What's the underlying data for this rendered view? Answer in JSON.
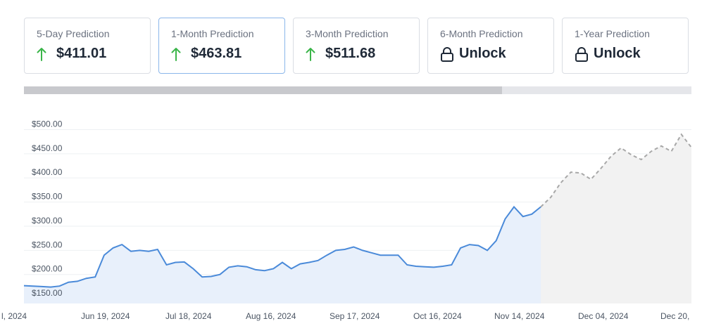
{
  "cards": [
    {
      "label": "5-Day Prediction",
      "value": "$411.01",
      "icon": "arrow-up-icon",
      "active": false
    },
    {
      "label": "1-Month Prediction",
      "value": "$463.81",
      "icon": "arrow-up-icon",
      "active": true
    },
    {
      "label": "3-Month Prediction",
      "value": "$511.68",
      "icon": "arrow-up-icon",
      "active": false
    },
    {
      "label": "6-Month Prediction",
      "value": "Unlock",
      "icon": "lock-icon",
      "active": false
    },
    {
      "label": "1-Year Prediction",
      "value": "Unlock",
      "icon": "lock-icon",
      "active": false
    }
  ],
  "colors": {
    "up_arrow": "#3bb54a",
    "line": "#4a8ad9",
    "area": "#e8f0fb",
    "forecast_line": "#a8a8a8",
    "forecast_area": "#f2f2f2"
  },
  "scroll_position": 0.716,
  "chart_data": {
    "type": "line",
    "title": "",
    "xlabel": "",
    "ylabel": "",
    "ylim": [
      140,
      505
    ],
    "yticks": [
      "$150.00",
      "$200.00",
      "$250.00",
      "$300.00",
      "$350.00",
      "$400.00",
      "$450.00",
      "$500.00"
    ],
    "ytick_values": [
      150,
      200,
      250,
      300,
      350,
      400,
      450,
      500
    ],
    "xticks": [
      "l, 2024",
      "Jun 19, 2024",
      "Jul 18, 2024",
      "Aug 16, 2024",
      "Sep 17, 2024",
      "Oct 16, 2024",
      "Nov 14, 2024",
      "Dec 04, 2024",
      "Dec 20,"
    ],
    "grid": true,
    "series": [
      {
        "kind": "historical",
        "x": [
          "May 21",
          "May 25",
          "May 29",
          "Jun 02",
          "Jun 06",
          "Jun 10",
          "Jun 14",
          "Jun 18",
          "Jun 22",
          "Jun 26",
          "Jun 30",
          "Jul 02",
          "Jul 05",
          "Jul 08",
          "Jul 10",
          "Jul 13",
          "Jul 16",
          "Jul 18",
          "Jul 21",
          "Jul 24",
          "Jul 27",
          "Jul 30",
          "Aug 02",
          "Aug 05",
          "Aug 08",
          "Aug 11",
          "Aug 14",
          "Aug 17",
          "Aug 20",
          "Aug 23",
          "Aug 26",
          "Aug 29",
          "Sep 01",
          "Sep 04",
          "Sep 07",
          "Sep 10",
          "Sep 13",
          "Sep 16",
          "Sep 19",
          "Sep 22",
          "Sep 25",
          "Sep 28",
          "Oct 01",
          "Oct 04",
          "Oct 07",
          "Oct 10",
          "Oct 13",
          "Oct 16",
          "Oct 19",
          "Oct 22",
          "Oct 25",
          "Oct 28",
          "Oct 31",
          "Nov 03",
          "Nov 06",
          "Nov 09",
          "Nov 12",
          "Nov 15",
          "Nov 18"
        ],
        "values": [
          177,
          176,
          175,
          174,
          176,
          184,
          186,
          192,
          195,
          240,
          255,
          262,
          248,
          250,
          248,
          252,
          220,
          225,
          226,
          212,
          195,
          196,
          200,
          215,
          218,
          216,
          210,
          208,
          212,
          225,
          212,
          222,
          225,
          229,
          240,
          250,
          252,
          257,
          250,
          245,
          240,
          240,
          240,
          220,
          217,
          216,
          215,
          217,
          220,
          255,
          262,
          260,
          250,
          270,
          315,
          340,
          320,
          325,
          340
        ]
      },
      {
        "kind": "forecast",
        "x": [
          "Nov 18",
          "Nov 21",
          "Nov 24",
          "Nov 27",
          "Nov 30",
          "Dec 02",
          "Dec 04",
          "Dec 06",
          "Dec 08",
          "Dec 10",
          "Dec 12",
          "Dec 14",
          "Dec 16",
          "Dec 18",
          "Dec 20",
          "Dec 22"
        ],
        "values": [
          340,
          360,
          390,
          412,
          410,
          397,
          420,
          445,
          462,
          448,
          438,
          455,
          466,
          455,
          490,
          463
        ]
      }
    ]
  }
}
